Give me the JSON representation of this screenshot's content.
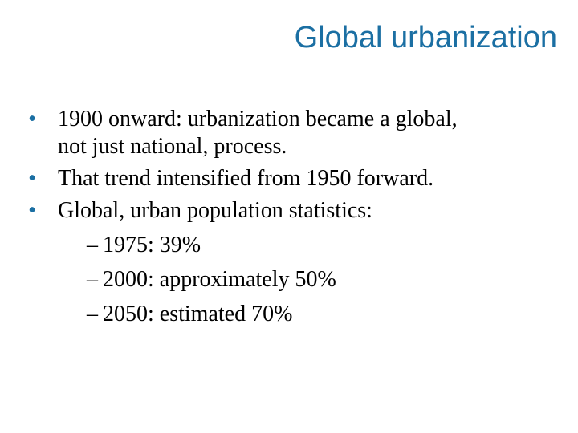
{
  "slide": {
    "title": "Global urbanization",
    "bullet_marker": "•",
    "bullets": [
      {
        "line1": "1900 onward: urbanization became a global,",
        "line2": "not just national, process."
      },
      {
        "line1": "That trend intensified from 1950 forward."
      },
      {
        "line1": "Global, urban population statistics:"
      }
    ],
    "sub_marker": "–",
    "sub_items": [
      "1975: 39%",
      "2000: approximately 50%",
      "2050: estimated 70%"
    ],
    "colors": {
      "title": "#1b6fa3",
      "bullet": "#1b6fa3",
      "text": "#000000",
      "background": "#ffffff"
    }
  }
}
